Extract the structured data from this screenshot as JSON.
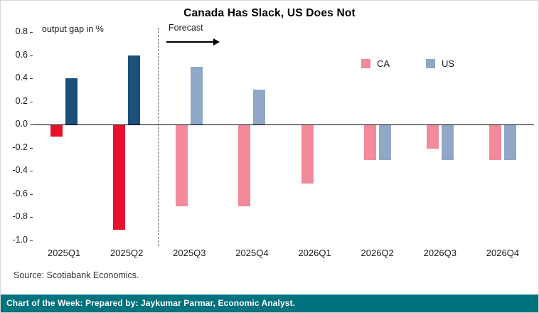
{
  "header": {
    "title": "Canada Has Slack, US Does Not"
  },
  "plot": {
    "ylabel_note": "output gap in %",
    "forecast_label": "Forecast"
  },
  "legend": {
    "ca": "CA",
    "us": "US"
  },
  "source": "Source: Scotiabank Economics.",
  "footer": "Chart of the Week: Prepared by: Jaykumar Parmar, Economic Analyst.",
  "colors": {
    "ca_actual": "#e8112d",
    "us_actual": "#1d4f7c",
    "ca_forecast": "#f28a9b",
    "us_forecast": "#90a7c7",
    "footer_bg": "#00737e",
    "zero_line": "#000000",
    "forecast_divider": "#666666"
  },
  "chart_data": {
    "type": "bar",
    "title": "Canada Has Slack, US Does Not",
    "ylabel": "output gap in %",
    "categories": [
      "2025Q1",
      "2025Q2",
      "2025Q3",
      "2025Q4",
      "2026Q1",
      "2026Q2",
      "2026Q3",
      "2026Q4"
    ],
    "series": [
      {
        "name": "CA",
        "values": [
          -0.1,
          -0.9,
          -0.7,
          -0.7,
          -0.5,
          -0.3,
          -0.2,
          -0.3
        ]
      },
      {
        "name": "US",
        "values": [
          0.4,
          0.6,
          0.5,
          0.3,
          0.0,
          -0.3,
          -0.3,
          -0.3
        ]
      }
    ],
    "forecast_start_index": 2,
    "ylim": [
      -1.0,
      0.8
    ],
    "ytick_step": 0.2,
    "grid": false,
    "legend_position": "upper-right",
    "annotations": [
      "Forecast"
    ]
  }
}
